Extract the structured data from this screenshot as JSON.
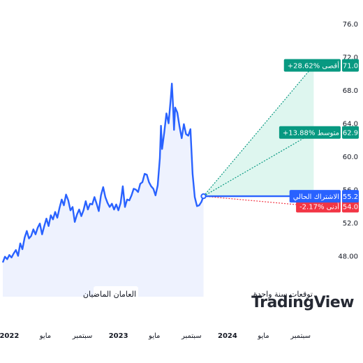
{
  "chart_data": {
    "type": "line",
    "watermark": "TradingView",
    "y_axis": {
      "ticks": [
        48.0,
        52.0,
        56.0,
        60.0,
        64.0,
        68.0,
        72.0,
        76.0
      ],
      "labels": [
        "48.00",
        "52.0",
        "56.0",
        "60.0",
        "64.0",
        "68.0",
        "72.0",
        "76.0"
      ],
      "ylim": [
        45.6,
        77.2
      ],
      "side": "right"
    },
    "x_axis": {
      "ticks": [
        {
          "label": "2022",
          "t": 2022.0,
          "year": true
        },
        {
          "label": "مايو",
          "t": 2022.33,
          "year": false
        },
        {
          "label": "سبتمبر",
          "t": 2022.67,
          "year": false
        },
        {
          "label": "2023",
          "t": 2023.0,
          "year": true
        },
        {
          "label": "مايو",
          "t": 2023.33,
          "year": false
        },
        {
          "label": "سبتمبر",
          "t": 2023.67,
          "year": false
        },
        {
          "label": "2024",
          "t": 2024.0,
          "year": true
        },
        {
          "label": "مايو",
          "t": 2024.33,
          "year": false
        },
        {
          "label": "سبتمبر",
          "t": 2024.67,
          "year": false
        }
      ],
      "xlim": [
        2021.94,
        2025.05
      ]
    },
    "sections": {
      "past": "العامان الماضيان",
      "forecast": "توقعات سنة واحدة"
    },
    "series": [
      {
        "values": [
          [
            2021.94,
            47.2
          ],
          [
            2021.96,
            47.9
          ],
          [
            2021.98,
            47.6
          ],
          [
            2022.0,
            48.1
          ],
          [
            2022.02,
            47.8
          ],
          [
            2022.04,
            48.3
          ],
          [
            2022.06,
            48.7
          ],
          [
            2022.08,
            48.0
          ],
          [
            2022.1,
            49.5
          ],
          [
            2022.12,
            48.8
          ],
          [
            2022.14,
            50.2
          ],
          [
            2022.16,
            51.0
          ],
          [
            2022.18,
            50.1
          ],
          [
            2022.2,
            50.4
          ],
          [
            2022.22,
            51.2
          ],
          [
            2022.24,
            50.6
          ],
          [
            2022.26,
            51.4
          ],
          [
            2022.28,
            51.9
          ],
          [
            2022.3,
            50.6
          ],
          [
            2022.32,
            51.6
          ],
          [
            2022.34,
            52.5
          ],
          [
            2022.36,
            51.6
          ],
          [
            2022.38,
            52.9
          ],
          [
            2022.4,
            52.4
          ],
          [
            2022.42,
            53.3
          ],
          [
            2022.44,
            52.6
          ],
          [
            2022.46,
            53.8
          ],
          [
            2022.48,
            54.8
          ],
          [
            2022.5,
            54.1
          ],
          [
            2022.52,
            55.4
          ],
          [
            2022.54,
            54.7
          ],
          [
            2022.56,
            53.5
          ],
          [
            2022.58,
            53.9
          ],
          [
            2022.6,
            52.1
          ],
          [
            2022.62,
            53.0
          ],
          [
            2022.64,
            53.6
          ],
          [
            2022.66,
            52.8
          ],
          [
            2022.68,
            53.5
          ],
          [
            2022.7,
            54.6
          ],
          [
            2022.72,
            53.6
          ],
          [
            2022.74,
            54.3
          ],
          [
            2022.76,
            54.2
          ],
          [
            2022.78,
            55.1
          ],
          [
            2022.8,
            54.3
          ],
          [
            2022.82,
            53.4
          ],
          [
            2022.84,
            55.3
          ],
          [
            2022.86,
            56.3
          ],
          [
            2022.88,
            55.1
          ],
          [
            2022.9,
            54.4
          ],
          [
            2022.92,
            53.9
          ],
          [
            2022.94,
            54.3
          ],
          [
            2022.96,
            53.6
          ],
          [
            2022.98,
            54.2
          ],
          [
            2023.0,
            53.5
          ],
          [
            2023.02,
            54.4
          ],
          [
            2023.04,
            56.4
          ],
          [
            2023.06,
            53.9
          ],
          [
            2023.08,
            54.8
          ],
          [
            2023.1,
            54.7
          ],
          [
            2023.12,
            55.3
          ],
          [
            2023.14,
            56.1
          ],
          [
            2023.16,
            56.0
          ],
          [
            2023.18,
            55.7
          ],
          [
            2023.2,
            56.7
          ],
          [
            2023.22,
            56.9
          ],
          [
            2023.24,
            57.9
          ],
          [
            2023.26,
            57.8
          ],
          [
            2023.28,
            56.9
          ],
          [
            2023.3,
            56.4
          ],
          [
            2023.32,
            56.1
          ],
          [
            2023.34,
            55.3
          ],
          [
            2023.36,
            56.5
          ],
          [
            2023.38,
            59.8
          ],
          [
            2023.39,
            63.7
          ],
          [
            2023.4,
            60.9
          ],
          [
            2023.42,
            62.9
          ],
          [
            2023.44,
            65.2
          ],
          [
            2023.46,
            64.0
          ],
          [
            2023.48,
            67.1
          ],
          [
            2023.49,
            68.8
          ],
          [
            2023.5,
            66.3
          ],
          [
            2023.51,
            63.2
          ],
          [
            2023.52,
            65.9
          ],
          [
            2023.54,
            65.3
          ],
          [
            2023.56,
            63.6
          ],
          [
            2023.58,
            62.2
          ],
          [
            2023.6,
            63.9
          ],
          [
            2023.62,
            62.7
          ],
          [
            2023.64,
            62.5
          ],
          [
            2023.66,
            63.3
          ],
          [
            2023.68,
            57.9
          ],
          [
            2023.7,
            55.1
          ],
          [
            2023.72,
            54.0
          ],
          [
            2023.74,
            54.1
          ],
          [
            2023.76,
            54.5
          ],
          [
            2023.78,
            55.2
          ]
        ]
      }
    ],
    "current": {
      "label": "الاشتراك الحالي",
      "value": 55.2,
      "value_label": "55.2",
      "color": "#2962ff"
    },
    "forecast": [
      {
        "label": "+28.62% أقصى",
        "value": 71.0,
        "value_label": "71.0",
        "color": "#089981"
      },
      {
        "label": "+13.88% متوسط",
        "value": 62.9,
        "value_label": "62.9",
        "color": "#089981"
      },
      {
        "label": "-2.17% أدنى",
        "value": 54.0,
        "value_label": "54.0",
        "color": "#f23645"
      }
    ],
    "forecast_end_t": 2024.79,
    "colors": {
      "line": "#2962ff",
      "area": "#eef2fe",
      "forecast_fill": "#d8f5ec",
      "axis_text": "#131722"
    },
    "grid": false
  }
}
